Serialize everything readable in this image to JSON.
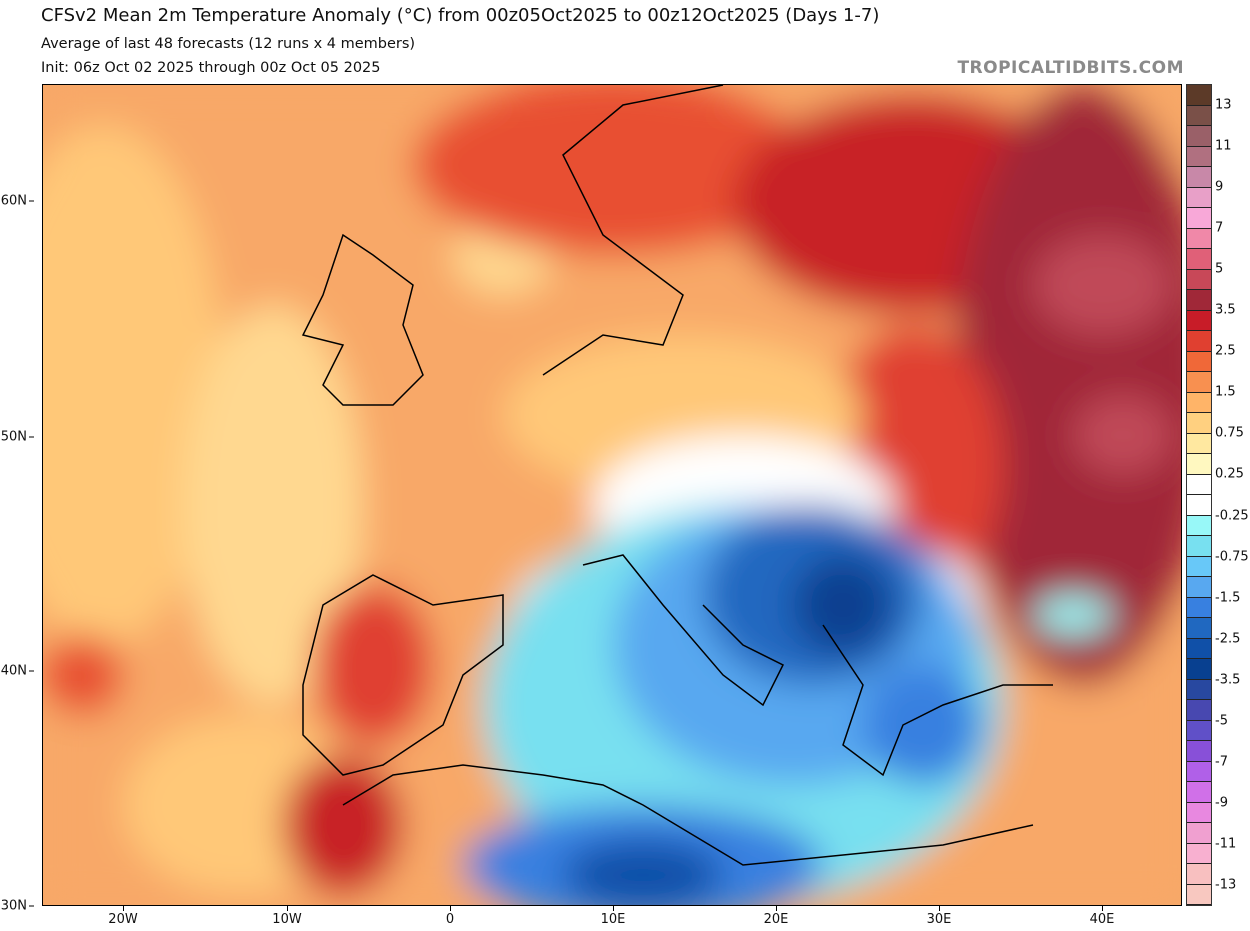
{
  "header": {
    "title": "CFSv2 Mean 2m Temperature Anomaly (°C) from 00z05Oct2025 to 00z12Oct2025 (Days 1-7)",
    "subtitle": "Average of last 48 forecasts (12 runs x 4 members)",
    "init": "Init: 06z Oct 02 2025 through 00z Oct 05 2025",
    "brand": "TROPICALTIDBITS.COM"
  },
  "map": {
    "lat_labels": [
      "60N",
      "50N",
      "40N",
      "30N"
    ],
    "lon_labels": [
      "20W",
      "10W",
      "0",
      "10E",
      "20E",
      "30E",
      "40E"
    ]
  },
  "colorbar": {
    "labels": [
      "13",
      "11",
      "9",
      "7",
      "5",
      "3.5",
      "2.5",
      "1.5",
      "0.75",
      "0.25",
      "-0.25",
      "-0.75",
      "-1.5",
      "-2.5",
      "-3.5",
      "-5",
      "-7",
      "-9",
      "-11",
      "-13"
    ],
    "colors": [
      "#5c3a28",
      "#7a5048",
      "#9a6068",
      "#b07080",
      "#c888a8",
      "#e8a0c8",
      "#f8a8d8",
      "#f088a8",
      "#e06078",
      "#c84858",
      "#a02838",
      "#c81c28",
      "#e04030",
      "#f06838",
      "#f89050",
      "#ffb468",
      "#ffd080",
      "#ffe8a0",
      "#fff8c0",
      "#ffffff",
      "#ffffff",
      "#98f8f8",
      "#78e0f0",
      "#68c8f8",
      "#58a8f0",
      "#3880e0",
      "#2068c0",
      "#1050a8",
      "#084090",
      "#2848a0",
      "#4848b0",
      "#6050c8",
      "#8850d8",
      "#b060e8",
      "#d070e8",
      "#e888e0",
      "#f0a0d0",
      "#f8b0d0",
      "#f8c0c0",
      "#f8c8c0"
    ]
  }
}
